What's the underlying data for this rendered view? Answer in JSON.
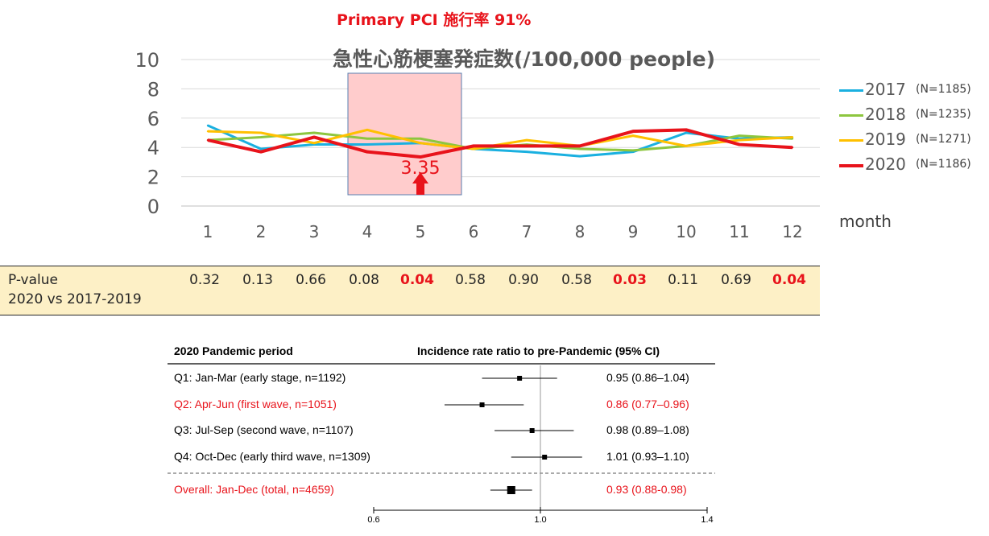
{
  "header": {
    "pci_title": "Primary PCI 施行率 91%"
  },
  "chart_data": [
    {
      "type": "line",
      "title": "急性心筋梗塞発症数(/100,000 people)",
      "xlabel": "month",
      "ylabel": "",
      "categories": [
        "1",
        "2",
        "3",
        "4",
        "5",
        "6",
        "7",
        "8",
        "9",
        "10",
        "11",
        "12"
      ],
      "ylim": [
        0,
        10
      ],
      "yticks": [
        "0",
        "2",
        "4",
        "6",
        "8",
        "10"
      ],
      "grid": "horizontal",
      "legend_position": "right",
      "series": [
        {
          "name": "2017",
          "n_label": "(N=1185)",
          "color": "#1ab0e0",
          "width": 3,
          "values": [
            5.5,
            3.9,
            4.2,
            4.2,
            4.3,
            3.9,
            3.7,
            3.4,
            3.7,
            5.0,
            4.6,
            4.7
          ]
        },
        {
          "name": "2018",
          "n_label": "(N=1235)",
          "color": "#8dc63f",
          "width": 3,
          "values": [
            4.5,
            4.7,
            5.0,
            4.6,
            4.6,
            3.9,
            4.2,
            3.9,
            3.8,
            4.1,
            4.8,
            4.6
          ]
        },
        {
          "name": "2019",
          "n_label": "(N=1271)",
          "color": "#ffc000",
          "width": 3,
          "values": [
            5.1,
            5.0,
            4.3,
            5.2,
            4.3,
            3.9,
            4.5,
            4.1,
            4.8,
            4.1,
            4.5,
            4.7
          ]
        },
        {
          "name": "2020",
          "n_label": "(N=1186)",
          "color": "#e8131b",
          "width": 4,
          "values": [
            4.5,
            3.7,
            4.7,
            3.7,
            3.35,
            4.1,
            4.1,
            4.1,
            5.1,
            5.2,
            4.2,
            4.0
          ]
        }
      ],
      "highlight": {
        "from_month": 4,
        "to_month": 6,
        "color": "#ffcccc",
        "border": "#5a7fb0"
      },
      "annotation": {
        "text": "3.35",
        "month": 5,
        "value": 3.35,
        "color": "#e8131b"
      }
    },
    {
      "type": "forest",
      "header_left": "2020 Pandemic period",
      "header_right": "Incidence rate ratio to pre-Pandemic (95% CI)",
      "xlim": [
        0.6,
        1.4
      ],
      "xticks": [
        "0.6",
        "1.0",
        "1.4"
      ],
      "reference": 1.0,
      "rows": [
        {
          "label": "Q1: Jan-Mar (early stage, n=1192)",
          "estimate": 0.95,
          "lower": 0.86,
          "upper": 1.04,
          "ci_text": "0.95 (0.86–1.04)",
          "color": "#000000"
        },
        {
          "label": "Q2: Apr-Jun (first wave, n=1051)",
          "estimate": 0.86,
          "lower": 0.77,
          "upper": 0.96,
          "ci_text": "0.86 (0.77–0.96)",
          "color": "#e8131b"
        },
        {
          "label": "Q3: Jul-Sep (second wave, n=1107)",
          "estimate": 0.98,
          "lower": 0.89,
          "upper": 1.08,
          "ci_text": "0.98 (0.89–1.08)",
          "color": "#000000"
        },
        {
          "label": "Q4: Oct-Dec (early third wave, n=1309)",
          "estimate": 1.01,
          "lower": 0.93,
          "upper": 1.1,
          "ci_text": "1.01 (0.93–1.10)",
          "color": "#000000"
        },
        {
          "label": "Overall: Jan-Dec (total, n=4659)",
          "estimate": 0.93,
          "lower": 0.88,
          "upper": 0.98,
          "ci_text": "0.93 (0.88-0.98)",
          "color": "#e8131b"
        }
      ]
    }
  ],
  "pvalues": {
    "label_line1": "P-value",
    "label_line2": "2020 vs 2017-2019",
    "values": [
      "0.32",
      "0.13",
      "0.66",
      "0.08",
      "0.04",
      "0.58",
      "0.90",
      "0.58",
      "0.03",
      "0.11",
      "0.69",
      "0.04"
    ],
    "significant": [
      false,
      false,
      false,
      false,
      true,
      false,
      false,
      false,
      true,
      false,
      false,
      true
    ]
  }
}
